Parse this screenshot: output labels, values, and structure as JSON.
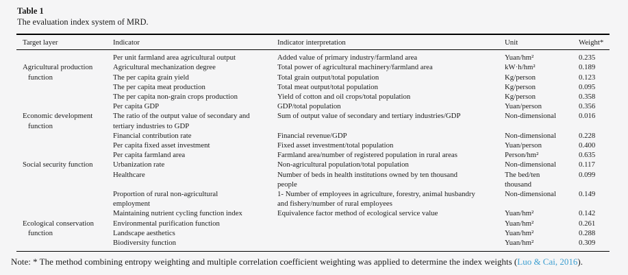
{
  "colors": {
    "background": "#f5f5f6",
    "text": "#1b1b1b",
    "rule": "#000000",
    "citation_link": "#3b9ed0"
  },
  "table": {
    "title": "Table 1",
    "caption": "The evaluation index system of MRD.",
    "columns": [
      "Target layer",
      "Indicator",
      "Indicator interpretation",
      "Unit",
      "Weight*"
    ],
    "groups": [
      {
        "target_layer": "Agricultural production\nfunction",
        "rows": [
          {
            "indicator": "Per unit farmland area agricultural output",
            "interpretation": "Added value of primary industry/farmland area",
            "unit": "Yuan/hm²",
            "weight": "0.235"
          },
          {
            "indicator": "Agricultural mechanization degree",
            "interpretation": "Total power of agricultural machinery/farmland area",
            "unit": "kW·h/hm²",
            "weight": "0.189"
          },
          {
            "indicator": "The per capita grain yield",
            "interpretation": "Total grain output/total population",
            "unit": "Kg/person",
            "weight": "0.123"
          },
          {
            "indicator": "The per capita meat production",
            "interpretation": "Total meat output/total population",
            "unit": "Kg/person",
            "weight": "0.095"
          },
          {
            "indicator": "The per capita non-grain crops production",
            "interpretation": "Yield of cotton and oil crops/total population",
            "unit": "Kg/person",
            "weight": "0.358"
          }
        ]
      },
      {
        "target_layer": "Economic development\nfunction",
        "rows": [
          {
            "indicator": "Per capita GDP",
            "interpretation": "GDP/total population",
            "unit": "Yuan/person",
            "weight": "0.356"
          },
          {
            "indicator": "The ratio of the output value of secondary and\ntertiary industries to GDP",
            "interpretation": "Sum of output value of secondary and tertiary industries/GDP",
            "unit": "Non-dimensional",
            "weight": "0.016"
          },
          {
            "indicator": "Financial contribution rate",
            "interpretation": "Financial revenue/GDP",
            "unit": "Non-dimensional",
            "weight": "0.228"
          },
          {
            "indicator": "Per capita fixed asset investment",
            "interpretation": "Fixed asset investment/total population",
            "unit": "Yuan/person",
            "weight": "0.400"
          }
        ]
      },
      {
        "target_layer": "Social security function",
        "rows": [
          {
            "indicator": "Per capita farmland area",
            "interpretation": "Farmland area/number of registered population in rural areas",
            "unit": "Person/hm²",
            "weight": "0.635"
          },
          {
            "indicator": "Urbanization rate",
            "interpretation": "Non-agricultural population/total population",
            "unit": "Non-dimensional",
            "weight": "0.117"
          },
          {
            "indicator": "Healthcare",
            "interpretation": "Number of beds in health institutions owned by ten thousand\npeople",
            "unit": "The bed/ten\nthousand",
            "weight": "0.099"
          },
          {
            "indicator": "Proportion of rural non-agricultural\nemployment",
            "interpretation": "1- Number of employees in agriculture, forestry, animal husbandry\nand fishery/number of rural employees",
            "unit": "Non-dimensional",
            "weight": "0.149"
          }
        ]
      },
      {
        "target_layer": "Ecological conservation\nfunction",
        "rows": [
          {
            "indicator": "Maintaining nutrient cycling function index",
            "interpretation": "Equivalence factor method of ecological service value",
            "unit": "Yuan/hm²",
            "weight": "0.142"
          },
          {
            "indicator": "Environmental purification function",
            "interpretation": "",
            "unit": "Yuan/hm²",
            "weight": "0.261"
          },
          {
            "indicator": "Landscape aesthetics",
            "interpretation": "",
            "unit": "Yuan/hm²",
            "weight": "0.288"
          },
          {
            "indicator": "Biodiversity function",
            "interpretation": "",
            "unit": "Yuan/hm²",
            "weight": "0.309"
          }
        ]
      }
    ],
    "note": {
      "prefix": "Note: * The method combining entropy weighting and multiple correlation coefficient weighting was applied to determine the index weights (",
      "citation": "Luo & Cai, 2016",
      "suffix": ")."
    }
  }
}
